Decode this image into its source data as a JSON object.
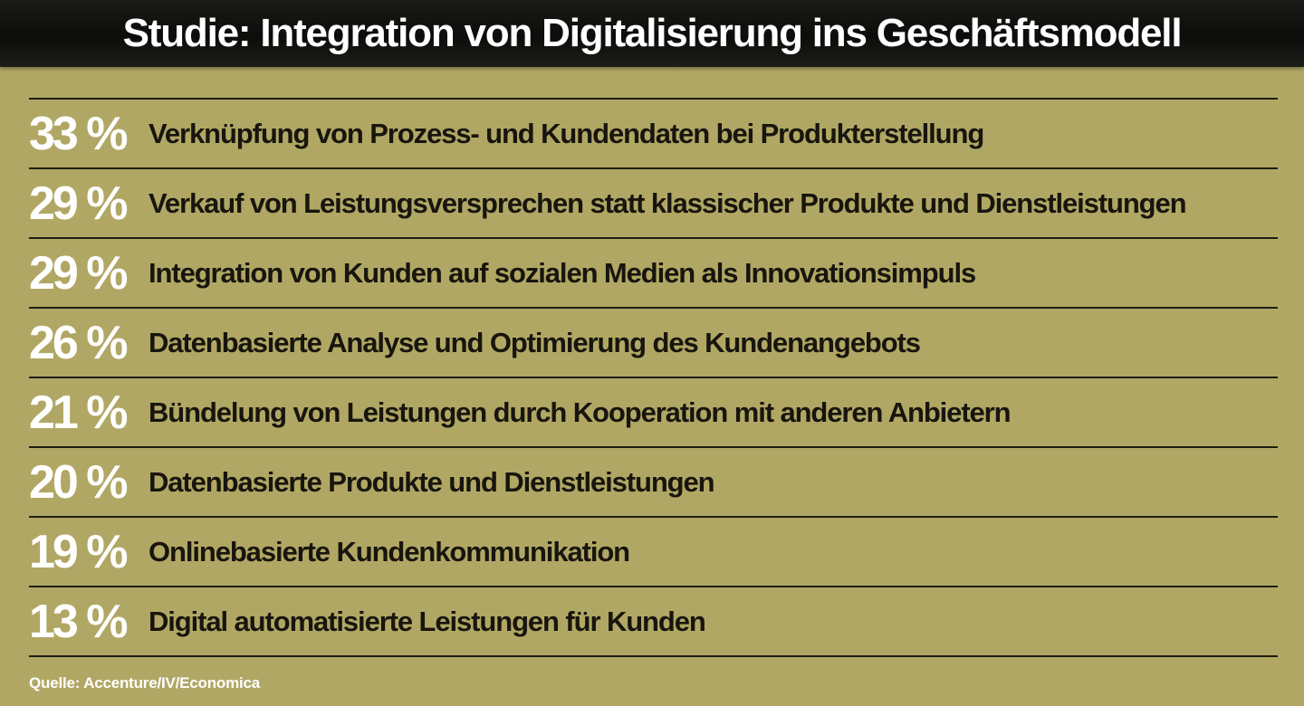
{
  "title": "Studie: Integration von Digitalisierung ins Geschäftsmodell",
  "source": "Quelle: Accenture/IV/Economica",
  "colors": {
    "background": "#b1a764",
    "title_bar": "#0c0c0a",
    "title_text": "#ffffff",
    "percent_text": "#ffffff",
    "label_text": "#17150d",
    "rules": "#1e1d12"
  },
  "chart_data": {
    "type": "table",
    "title": "Studie: Integration von Digitalisierung ins Geschäftsmodell",
    "unit": "%",
    "rows": [
      {
        "display": "33 %",
        "value": 33,
        "label": "Verknüpfung von Prozess- und Kundendaten bei Produkterstellung"
      },
      {
        "display": "29 %",
        "value": 29,
        "label": "Verkauf von Leistungsversprechen statt klassischer Produkte und Dienstleistungen"
      },
      {
        "display": "29 %",
        "value": 29,
        "label": "Integration von Kunden auf sozialen Medien als Innovationsimpuls"
      },
      {
        "display": "26 %",
        "value": 26,
        "label": "Datenbasierte Analyse und Optimierung des Kundenangebots"
      },
      {
        "display": "21 %",
        "value": 21,
        "label": "Bündelung von Leistungen durch Kooperation mit anderen Anbietern"
      },
      {
        "display": "20 %",
        "value": 20,
        "label": "Datenbasierte Produkte und Dienstleistungen"
      },
      {
        "display": "19 %",
        "value": 19,
        "label": "Onlinebasierte Kundenkommunikation"
      },
      {
        "display": "13 %",
        "value": 13,
        "label": "Digital automatisierte Leistungen für Kunden"
      }
    ],
    "source": "Quelle: Accenture/IV/Economica"
  }
}
